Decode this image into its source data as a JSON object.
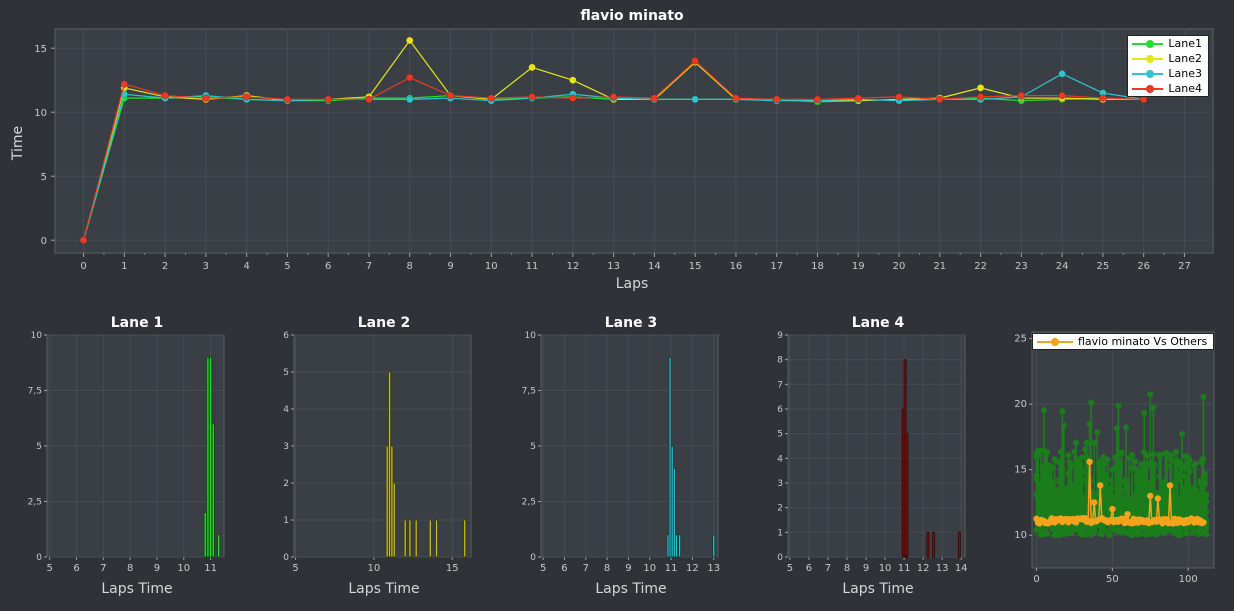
{
  "main": {
    "title": "flavio minato",
    "xlabel": "Laps",
    "ylabel": "Time",
    "ylim": [
      -1,
      16.5
    ],
    "xlim": [
      -0.7,
      27.7
    ],
    "xticks": [
      0,
      1,
      2,
      3,
      4,
      5,
      6,
      7,
      8,
      9,
      10,
      11,
      12,
      13,
      14,
      15,
      16,
      17,
      18,
      19,
      20,
      21,
      22,
      23,
      24,
      25,
      26,
      27
    ],
    "yticks": [
      0,
      5,
      10,
      15
    ],
    "series": [
      {
        "name": "Lane1",
        "color": "#22e02a",
        "x": [
          0,
          1,
          2,
          3,
          4,
          5,
          6,
          7,
          8,
          9,
          10,
          11,
          12,
          13,
          14,
          15,
          16,
          17,
          18,
          19,
          20,
          21,
          22,
          23,
          24,
          25,
          26
        ],
        "y": [
          0,
          11.1,
          11.1,
          11.2,
          11.0,
          10.9,
          10.9,
          11.1,
          11.1,
          11.3,
          11.0,
          11.1,
          11.2,
          11.0,
          11.0,
          11.0,
          11.0,
          11.0,
          10.8,
          10.9,
          11.0,
          11.0,
          11.1,
          10.9,
          11.0,
          11.1,
          11.0
        ]
      },
      {
        "name": "Lane2",
        "color": "#e6e61a",
        "x": [
          0,
          1,
          2,
          3,
          4,
          5,
          6,
          7,
          8,
          9,
          10,
          11,
          12,
          13,
          14,
          15,
          16,
          17,
          18,
          19,
          20,
          21,
          22,
          23,
          24,
          25,
          26
        ],
        "y": [
          0,
          11.9,
          11.2,
          11.0,
          11.3,
          10.9,
          11.0,
          11.2,
          15.6,
          11.3,
          11.0,
          13.5,
          12.5,
          11.0,
          11.0,
          13.9,
          11.0,
          11.0,
          10.9,
          10.9,
          11.0,
          11.1,
          11.9,
          11.1,
          11.1,
          11.0,
          11.0
        ]
      },
      {
        "name": "Lane3",
        "color": "#2ec4d0",
        "x": [
          0,
          1,
          2,
          3,
          4,
          5,
          6,
          7,
          8,
          9,
          10,
          11,
          12,
          13,
          14,
          15,
          16,
          17,
          18,
          19,
          20,
          21,
          22,
          23,
          24,
          25,
          26
        ],
        "y": [
          0,
          11.4,
          11.1,
          11.3,
          11.0,
          10.9,
          11.0,
          11.0,
          11.0,
          11.1,
          10.9,
          11.1,
          11.4,
          11.1,
          11.0,
          11.0,
          11.0,
          10.9,
          10.9,
          11.0,
          10.9,
          11.0,
          11.0,
          11.2,
          13.0,
          11.5,
          11.0
        ]
      },
      {
        "name": "Lane4",
        "color": "#e83a25",
        "x": [
          0,
          1,
          2,
          3,
          4,
          5,
          6,
          7,
          8,
          9,
          10,
          11,
          12,
          13,
          14,
          15,
          16,
          17,
          18,
          19,
          20,
          21,
          22,
          23,
          24,
          25,
          26
        ],
        "y": [
          0,
          12.2,
          11.3,
          11.1,
          11.2,
          11.0,
          11.0,
          11.0,
          12.7,
          11.3,
          11.1,
          11.2,
          11.1,
          11.2,
          11.1,
          14.0,
          11.1,
          11.0,
          11.0,
          11.1,
          11.2,
          11.0,
          11.2,
          11.3,
          11.3,
          11.1,
          11.0
        ]
      }
    ]
  },
  "histograms": [
    {
      "title": "Lane 1",
      "xlabel": "Laps Time",
      "color": "#22e02a",
      "edge": "#0a4a0a",
      "xlim": [
        4.9,
        11.5
      ],
      "ylim": [
        0,
        10
      ],
      "xticks": [
        "5",
        "6",
        "7",
        "8",
        "9",
        "10",
        "11"
      ],
      "yticks": [
        "0",
        "2,5",
        "5",
        "7,5",
        "10"
      ],
      "yvals": [
        0,
        2.5,
        5,
        7.5,
        10
      ],
      "bins": [
        [
          10.8,
          2
        ],
        [
          10.9,
          9
        ],
        [
          11.0,
          9
        ],
        [
          11.1,
          6
        ],
        [
          11.3,
          1
        ]
      ],
      "width": 0.08
    },
    {
      "title": "Lane 2",
      "xlabel": "Laps Time",
      "color": "#c9c21c",
      "edge": "#3d3a08",
      "xlim": [
        4.9,
        16.2
      ],
      "ylim": [
        0,
        6
      ],
      "xticks": [
        "5",
        "10",
        "15"
      ],
      "yticks": [
        "0",
        "1",
        "2",
        "3",
        "4",
        "5",
        "6"
      ],
      "yvals": [
        0,
        1,
        2,
        3,
        4,
        5,
        6
      ],
      "bins": [
        [
          10.85,
          3
        ],
        [
          11.0,
          5
        ],
        [
          11.15,
          3
        ],
        [
          11.3,
          2
        ],
        [
          12.0,
          1
        ],
        [
          12.3,
          1
        ],
        [
          12.7,
          1
        ],
        [
          13.6,
          1
        ],
        [
          14.0,
          1
        ],
        [
          15.8,
          1
        ]
      ],
      "width": 0.13
    },
    {
      "title": "Lane 3",
      "xlabel": "Laps Time",
      "color": "#2ec4d0",
      "edge": "#0a3a3e",
      "xlim": [
        4.9,
        13.2
      ],
      "ylim": [
        0,
        10
      ],
      "xticks": [
        "5",
        "6",
        "7",
        "8",
        "9",
        "10",
        "11",
        "12",
        "13"
      ],
      "yticks": [
        "0",
        "2,5",
        "5",
        "7,5",
        "10"
      ],
      "yvals": [
        0,
        2.5,
        5,
        7.5,
        10
      ],
      "bins": [
        [
          10.85,
          1
        ],
        [
          10.95,
          9
        ],
        [
          11.05,
          5
        ],
        [
          11.15,
          4
        ],
        [
          11.25,
          1
        ],
        [
          11.4,
          1
        ],
        [
          13.0,
          1
        ]
      ],
      "width": 0.09
    },
    {
      "title": "Lane 4",
      "xlabel": "Laps Time",
      "color": "#8a0f0f",
      "edge": "#2a0505",
      "xlim": [
        4.9,
        14.2
      ],
      "ylim": [
        0,
        9
      ],
      "xticks": [
        "5",
        "6",
        "7",
        "8",
        "9",
        "10",
        "11",
        "12",
        "13",
        "14"
      ],
      "yticks": [
        "0",
        "1",
        "2",
        "3",
        "4",
        "5",
        "6",
        "7",
        "8",
        "9"
      ],
      "yvals": [
        0,
        1,
        2,
        3,
        4,
        5,
        6,
        7,
        8,
        9
      ],
      "bins": [
        [
          10.95,
          6
        ],
        [
          11.05,
          8
        ],
        [
          11.15,
          5
        ],
        [
          12.25,
          1
        ],
        [
          12.55,
          1
        ],
        [
          13.9,
          1
        ]
      ],
      "width": 0.1
    }
  ],
  "compare": {
    "legend": "flavio minato Vs Others",
    "color": "#f5a31a",
    "others_color": "#1b7d1b",
    "xlim": [
      -3,
      117
    ],
    "ylim": [
      7.5,
      25.5
    ],
    "xticks": [
      0,
      50,
      100
    ],
    "yticks": [
      10,
      15,
      20,
      25
    ]
  }
}
